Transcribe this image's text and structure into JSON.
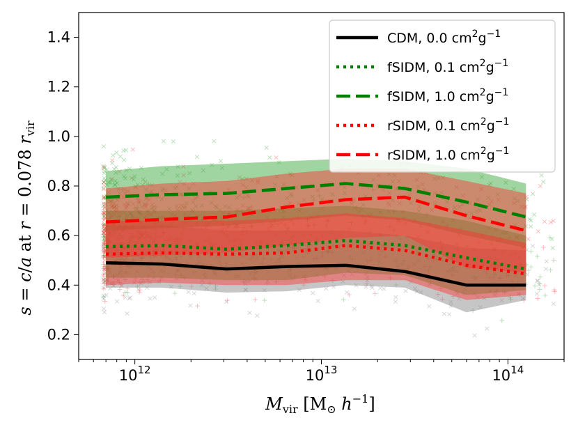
{
  "chart_data": {
    "type": "line",
    "xscale": "log",
    "xlim": [
      500000000000.0,
      200000000000000.0
    ],
    "ylim": [
      0.1,
      1.5
    ],
    "xticks": [
      {
        "value": 1000000000000.0,
        "base": "10",
        "exp": "12"
      },
      {
        "value": 10000000000000.0,
        "base": "10",
        "exp": "13"
      },
      {
        "value": 100000000000000.0,
        "base": "10",
        "exp": "14"
      }
    ],
    "yticks": [
      {
        "value": 0.2,
        "label": "0.2"
      },
      {
        "value": 0.4,
        "label": "0.4"
      },
      {
        "value": 0.6,
        "label": "0.6"
      },
      {
        "value": 0.8,
        "label": "0.8"
      },
      {
        "value": 1.0,
        "label": "1.0"
      },
      {
        "value": 1.2,
        "label": "1.2"
      },
      {
        "value": 1.4,
        "label": "1.4"
      }
    ],
    "xlabel": {
      "m": "M",
      "sub": "vir",
      "bracket_open": " [M",
      "sun": "⊙",
      "h": " h",
      "exp": "−1",
      "bracket_close": "]"
    },
    "ylabel": {
      "s": "s",
      "eq1": " = ",
      "c": "c",
      "slash": "/",
      "a": "a",
      "at": " at ",
      "r": "r",
      "eq2": " = 0.078 ",
      "r2": "r",
      "sub": "vir"
    },
    "x": [
      700000000000.0,
      1400000000000.0,
      3100000000000.0,
      6500000000000.0,
      13500000000000.0,
      28000000000000.0,
      60000000000000.0,
      125000000000000.0
    ],
    "series": [
      {
        "name": "CDM",
        "sigma": "0.0",
        "unit_a": " cm",
        "unit_exp1": "2",
        "unit_b": "g",
        "unit_exp2": "−1",
        "color": "#000000",
        "style": "solid",
        "values": [
          0.49,
          0.485,
          0.465,
          0.475,
          0.48,
          0.455,
          0.4,
          0.4
        ],
        "band_low": [
          0.39,
          0.39,
          0.37,
          0.375,
          0.4,
          0.39,
          0.29,
          0.34
        ],
        "band_high": [
          0.64,
          0.64,
          0.62,
          0.62,
          0.62,
          0.6,
          0.55,
          0.54
        ],
        "band_color": "#808080"
      },
      {
        "name": "fSIDM",
        "sigma": "0.1",
        "unit_a": " cm",
        "unit_exp1": "2",
        "unit_b": "g",
        "unit_exp2": "−1",
        "color": "#008000",
        "style": "dotted",
        "values": [
          0.555,
          0.56,
          0.545,
          0.56,
          0.58,
          0.56,
          0.51,
          0.465
        ],
        "band_low": [
          0.43,
          0.43,
          0.42,
          0.42,
          0.45,
          0.44,
          0.36,
          0.38
        ],
        "band_high": [
          0.7,
          0.7,
          0.7,
          0.71,
          0.72,
          0.7,
          0.66,
          0.6
        ],
        "band_color": "#2ca02c"
      },
      {
        "name": "fSIDM",
        "sigma": "1.0",
        "unit_a": " cm",
        "unit_exp1": "2",
        "unit_b": "g",
        "unit_exp2": "−1",
        "color": "#008000",
        "style": "dashed",
        "values": [
          0.755,
          0.765,
          0.77,
          0.79,
          0.81,
          0.79,
          0.735,
          0.675
        ],
        "band_low": [
          0.62,
          0.63,
          0.64,
          0.66,
          0.68,
          0.66,
          0.6,
          0.55
        ],
        "band_high": [
          0.86,
          0.88,
          0.89,
          0.9,
          0.91,
          0.9,
          0.87,
          0.81
        ],
        "band_color": "#2ca02c"
      },
      {
        "name": "rSIDM",
        "sigma": "0.1",
        "unit_a": " cm",
        "unit_exp1": "2",
        "unit_b": "g",
        "unit_exp2": "−1",
        "color": "#ff0000",
        "style": "dotted",
        "values": [
          0.525,
          0.53,
          0.525,
          0.53,
          0.56,
          0.54,
          0.48,
          0.445
        ],
        "band_low": [
          0.4,
          0.41,
          0.4,
          0.4,
          0.42,
          0.42,
          0.34,
          0.36
        ],
        "band_high": [
          0.66,
          0.66,
          0.66,
          0.67,
          0.69,
          0.67,
          0.62,
          0.57
        ],
        "band_color": "#ff3030"
      },
      {
        "name": "rSIDM",
        "sigma": "1.0",
        "unit_a": " cm",
        "unit_exp1": "2",
        "unit_b": "g",
        "unit_exp2": "−1",
        "color": "#ff0000",
        "style": "dashed",
        "values": [
          0.655,
          0.665,
          0.675,
          0.715,
          0.745,
          0.755,
          0.68,
          0.62
        ],
        "band_low": [
          0.51,
          0.52,
          0.53,
          0.56,
          0.59,
          0.6,
          0.47,
          0.45
        ],
        "band_high": [
          0.79,
          0.81,
          0.82,
          0.85,
          0.87,
          0.87,
          0.82,
          0.77
        ],
        "band_color": "#ff3030"
      }
    ],
    "scatter_note": "individual halo measurements shown as faint x/+/Y markers"
  }
}
